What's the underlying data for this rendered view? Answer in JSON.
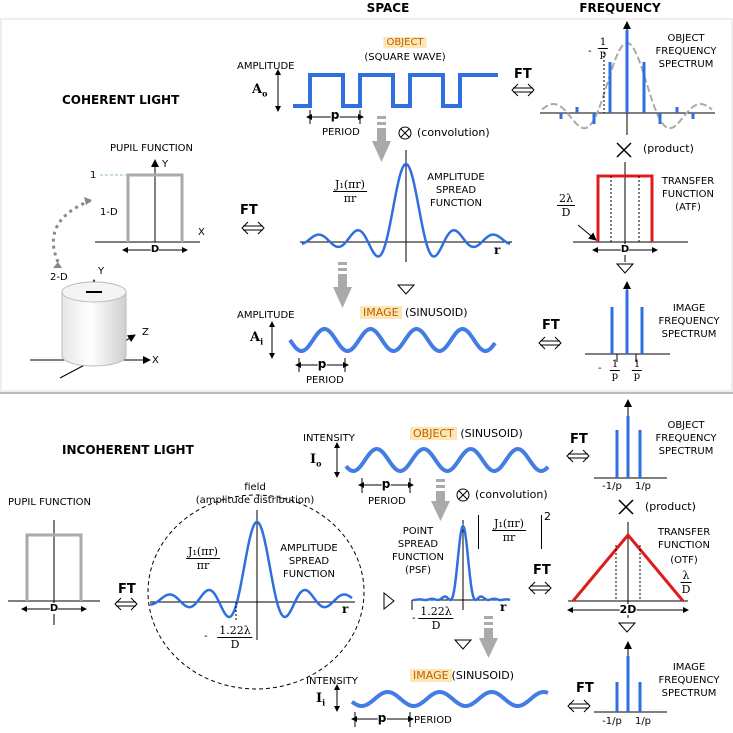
{
  "headers": {
    "space": "SPACE",
    "frequency": "FREQUENCY"
  },
  "coherent": {
    "title": "COHERENT LIGHT",
    "pupil_function": "PUPIL FUNCTION",
    "axis_one": "1",
    "label_1d": "1-D",
    "label_2d": "2-D",
    "axis_y": "Y",
    "axis_x": "X",
    "axis_z": "Z",
    "axis_d": "D",
    "ft": "FT",
    "amplitude": "AMPLITUDE",
    "a0": "A",
    "a0_sub": "o",
    "object_tag": "OBJECT",
    "object_desc": "(SQUARE WAVE)",
    "p": "p",
    "period": "PERIOD",
    "convolution": "(convolution)",
    "j1_num": "J₁(πr)",
    "j1_den": "πr",
    "asf_l1": "AMPLITUDE",
    "asf_l2": "SPREAD",
    "asf_l3": "FUNCTION",
    "r": "r",
    "image_tag": "IMAGE",
    "image_desc": "(SINUSOID)",
    "ai": "A",
    "ai_sub": "i",
    "obj_spec_l1": "OBJECT",
    "obj_spec_l2": "FREQUENCY",
    "obj_spec_l3": "SPECTRUM",
    "one_over_p_num": "1",
    "one_over_p_den": "p",
    "minus": "-",
    "product": "(product)",
    "atf_l1": "TRANSFER",
    "atf_l2": "FUNCTION",
    "atf_l3": "(ATF)",
    "two_lambda_num": "2λ",
    "two_lambda_den": "D",
    "img_spec_l1": "IMAGE",
    "img_spec_l2": "FREQUENCY",
    "img_spec_l3": "SPECTRUM"
  },
  "incoherent": {
    "title": "INCOHERENT LIGHT",
    "pupil_function": "PUPIL FUNCTION",
    "axis_d": "D",
    "ft": "FT",
    "field_l1": "field",
    "field_l2": "(amplitude distribution)",
    "j1_num": "J₁(πr)",
    "j1_den": "πr",
    "asf_l1": "AMPLITUDE",
    "asf_l2": "SPREAD",
    "asf_l3": "FUNCTION",
    "r": "r",
    "first_zero_num": "1.22λ",
    "first_zero_den": "D",
    "intensity": "INTENSITY",
    "io": "I",
    "io_sub": "o",
    "object_tag": "OBJECT",
    "object_desc": "(SINUSOID)",
    "p": "p",
    "period": "PERIOD",
    "convolution": "(convolution)",
    "psf_l1": "POINT",
    "psf_l2": "SPREAD",
    "psf_l3": "FUNCTION",
    "psf_l4": "(PSF)",
    "psf_num": "J₁(πr)",
    "psf_den": "πr",
    "psf_pow": "2",
    "image_tag": "IMAGE",
    "image_desc": "(SINUSOID)",
    "ii": "I",
    "ii_sub": "i",
    "obj_spec_l1": "OBJECT",
    "obj_spec_l2": "FREQUENCY",
    "obj_spec_l3": "SPECTRUM",
    "minus_one_over_p": "-1/p",
    "one_over_p": "1/p",
    "product": "(product)",
    "otf_l1": "TRANSFER",
    "otf_l2": "FUNCTION",
    "otf_l3": "(OTF)",
    "lambda_num": "λ",
    "lambda_den": "D",
    "two_d": "2D",
    "img_spec_l1": "IMAGE",
    "img_spec_l2": "FREQUENCY",
    "img_spec_l3": "SPECTRUM"
  },
  "colors": {
    "wave": "#2f6fe0",
    "red": "#dd1c1c",
    "gray": "#aaaaaa",
    "panel": "#eeeeee"
  }
}
